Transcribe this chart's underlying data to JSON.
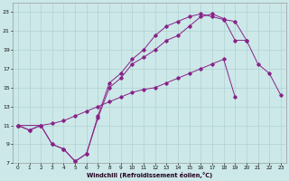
{
  "xlabel": "Windchill (Refroidissement éolien,°C)",
  "background_color": "#cce8e8",
  "grid_color": "#aacccc",
  "line_color": "#882288",
  "xlim": [
    -0.5,
    23.5
  ],
  "ylim": [
    7,
    24
  ],
  "xticks": [
    0,
    1,
    2,
    3,
    4,
    5,
    6,
    7,
    8,
    9,
    10,
    11,
    12,
    13,
    14,
    15,
    16,
    17,
    18,
    19,
    20,
    21,
    22,
    23
  ],
  "yticks": [
    7,
    9,
    11,
    13,
    15,
    17,
    19,
    21,
    23
  ],
  "curve1_x": [
    0,
    1,
    2,
    3,
    4,
    5,
    6,
    7,
    8,
    9,
    10,
    11,
    12,
    13,
    14,
    15,
    16,
    17,
    18,
    19,
    20,
    21,
    22,
    23
  ],
  "curve1_y": [
    11,
    10.5,
    11,
    9,
    8.5,
    7.2,
    8,
    12,
    15.5,
    16.5,
    18,
    19,
    20.5,
    21.5,
    22,
    22.5,
    22.8,
    22.5,
    22.2,
    22,
    20,
    17.5,
    16.5,
    14.2
  ],
  "curve2_x": [
    0,
    1,
    2,
    3,
    4,
    5,
    6,
    7,
    8,
    9,
    10,
    11,
    12,
    13,
    14,
    15,
    16,
    17,
    18,
    19,
    20
  ],
  "curve2_y": [
    11,
    10.5,
    11,
    9,
    8.5,
    7.2,
    8,
    11.8,
    15,
    16,
    17.5,
    18.2,
    19,
    20,
    20.5,
    21.5,
    22.5,
    22.8,
    22.3,
    20,
    20
  ],
  "curve3_x": [
    0,
    2,
    3,
    4,
    5,
    6,
    7,
    8,
    9,
    10,
    11,
    12,
    13,
    14,
    15,
    16,
    17,
    18,
    19,
    20,
    21,
    22,
    23
  ],
  "curve3_y": [
    11,
    11,
    11.2,
    11.5,
    12,
    12.5,
    13,
    13.5,
    14,
    14.5,
    14.8,
    15,
    15.5,
    16,
    16.5,
    17,
    17.5,
    18,
    14,
    null,
    null,
    null,
    null
  ],
  "figsize": [
    3.2,
    2.0
  ],
  "dpi": 100
}
